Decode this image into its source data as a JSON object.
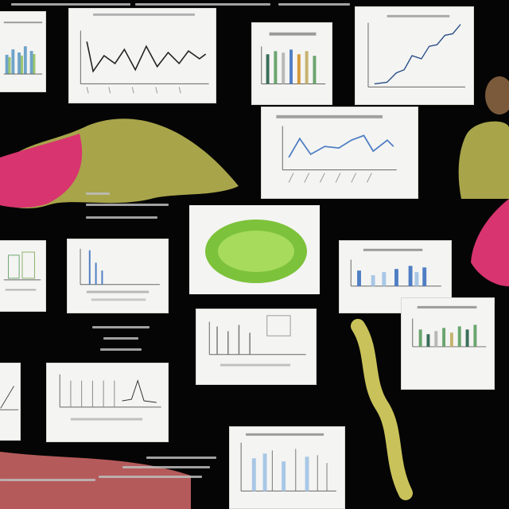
{
  "image": {
    "text_legible": false,
    "panels": [
      {
        "id": "p1",
        "kind": "bar-chart"
      },
      {
        "id": "p2",
        "kind": "line-chart"
      },
      {
        "id": "p3",
        "kind": "bar-chart"
      },
      {
        "id": "p4",
        "kind": "line-chart"
      },
      {
        "id": "p5",
        "kind": "line-chart"
      },
      {
        "id": "p6",
        "kind": "bar-chart"
      },
      {
        "id": "p7",
        "kind": "bar-chart"
      },
      {
        "id": "p8",
        "kind": "bar-chart"
      },
      {
        "id": "p9",
        "kind": "bar-chart"
      },
      {
        "id": "p10",
        "kind": "bar-chart"
      },
      {
        "id": "p11",
        "kind": "line-chart"
      },
      {
        "id": "p12",
        "kind": "bar-chart"
      },
      {
        "id": "p13",
        "kind": "bar-chart"
      }
    ],
    "colors": {
      "background": "#050505",
      "panel": "#f4f4f2",
      "pink_tissue": "#d8346f",
      "olive_tissue": "#a8a44a",
      "green_cell": "#7cc23a",
      "yellow_spine": "#c9c25a",
      "chart_line": "#222222",
      "chart_blue": "#4f7ec4"
    }
  }
}
